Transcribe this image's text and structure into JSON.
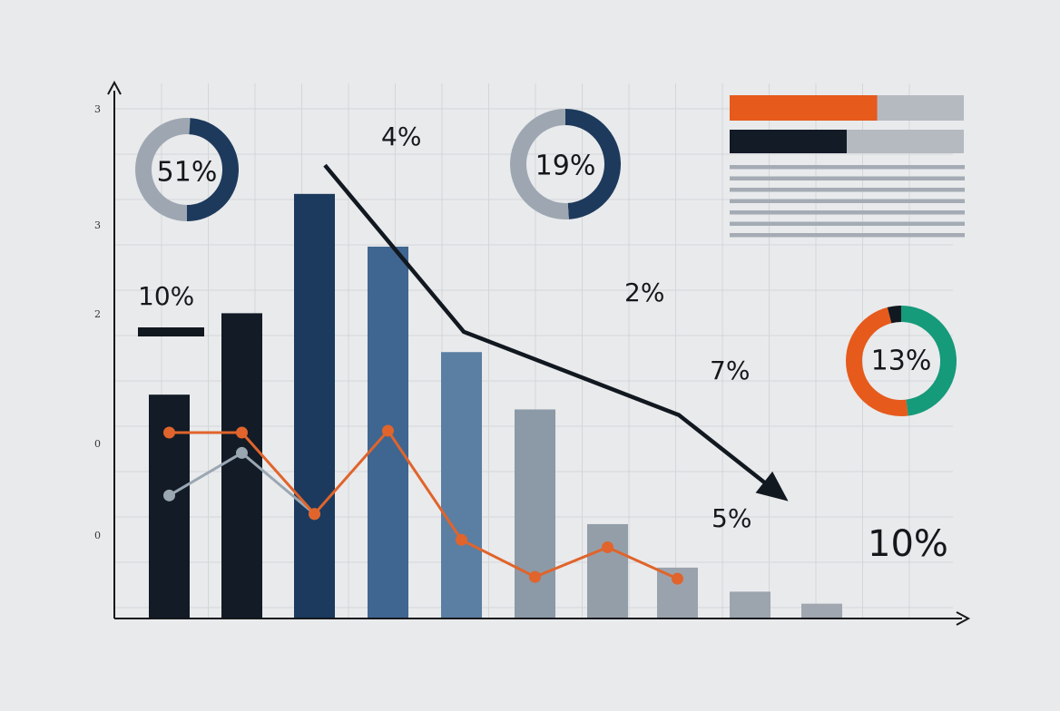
{
  "chart_data": {
    "type": "bar",
    "bars": {
      "values": [
        2.42,
        3.3,
        4.59,
        4.02,
        2.88,
        2.26,
        1.02,
        0.55,
        0.29,
        0.16
      ],
      "colors": [
        "#121b26",
        "#121b26",
        "#1b3a5e",
        "#3f6690",
        "#5b7ea3",
        "#8c99a7",
        "#949ea9",
        "#9aa3ad",
        "#9ca4ae",
        "#a0a7b0"
      ]
    },
    "y_ticks": [
      "0",
      "0",
      "2",
      "3",
      "3"
    ],
    "orange_line": {
      "color": "#e0642b",
      "values": [
        2.01,
        2.01,
        1.13,
        2.03,
        0.85,
        0.45,
        0.77,
        0.43
      ]
    },
    "gray_line": {
      "color": "#9aa7b3",
      "values": [
        1.33,
        1.79,
        1.13
      ]
    },
    "trend_arrow": {
      "color": "#121820",
      "values": [
        4.9,
        3.1,
        2.2,
        1.45
      ]
    },
    "annotations": [
      "10%",
      "4%",
      "2%",
      "7%",
      "5%",
      "10%"
    ],
    "donuts": [
      {
        "label": "51%",
        "segments": [
          {
            "value": 51,
            "color": "#9ea7b1"
          },
          {
            "value": 49,
            "color": "#1d3a5c"
          }
        ]
      },
      {
        "label": "19%",
        "segments": [
          {
            "value": 49,
            "color": "#1d3a5c"
          },
          {
            "value": 51,
            "color": "#9ea7b1"
          }
        ]
      },
      {
        "label": "13%",
        "segments": [
          {
            "value": 48,
            "color": "#159a7a"
          },
          {
            "value": 48,
            "color": "#e65a1c"
          },
          {
            "value": 4,
            "color": "#121820"
          }
        ]
      }
    ],
    "progress_bars": [
      {
        "value": 0.63,
        "color": "#e65a1c",
        "track": "#b5bac1"
      },
      {
        "value": 0.5,
        "color": "#121b26",
        "track": "#b5bac1"
      }
    ],
    "legend_line_count": 7,
    "grid": true,
    "ylim": [
      0,
      5
    ]
  }
}
